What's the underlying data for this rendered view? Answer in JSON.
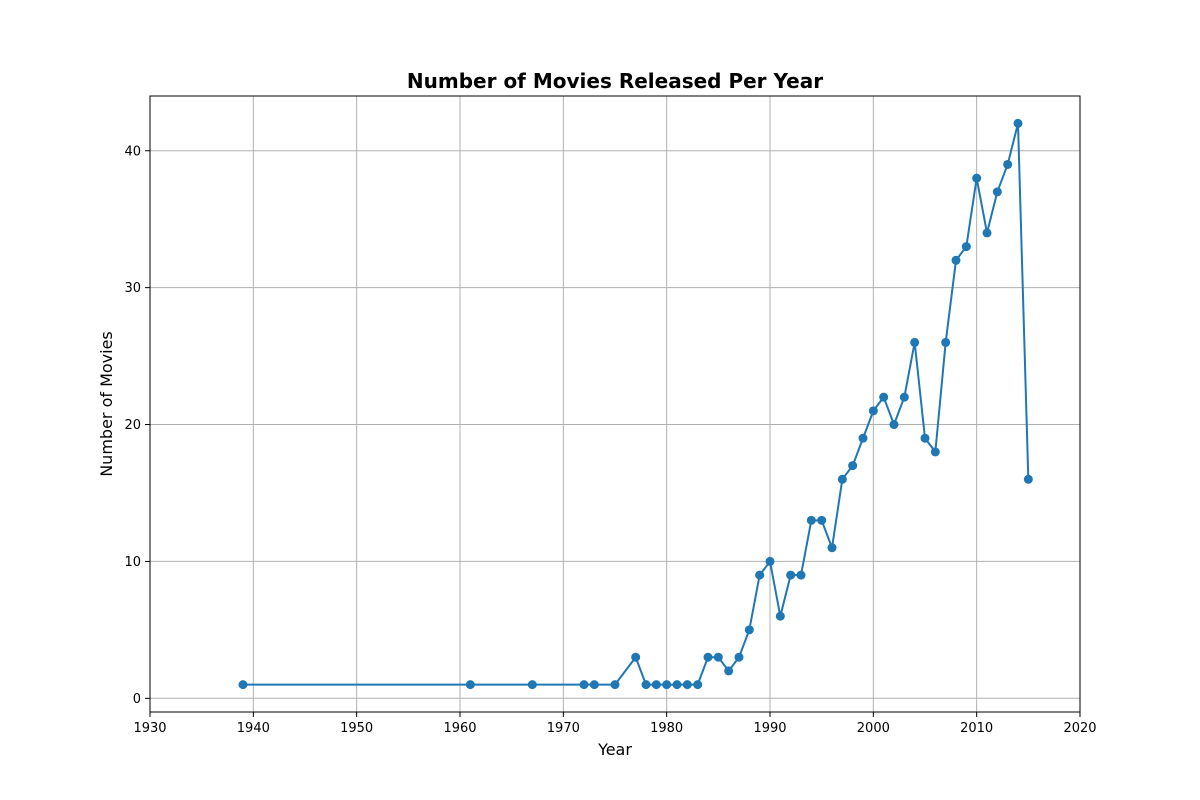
{
  "chart_data": {
    "type": "line",
    "title": "Number of Movies Released Per Year",
    "xlabel": "Year",
    "ylabel": "Number of Movies",
    "xlim": [
      1930,
      2020
    ],
    "ylim": [
      -1,
      44
    ],
    "xticks": [
      1930,
      1940,
      1950,
      1960,
      1970,
      1980,
      1990,
      2000,
      2010,
      2020
    ],
    "yticks": [
      0,
      10,
      20,
      30,
      40
    ],
    "grid": true,
    "marker": "circle",
    "color": "#1f77b4",
    "series": [
      {
        "x": [
          1939,
          1961,
          1967,
          1972,
          1973,
          1975,
          1977,
          1978,
          1979,
          1980,
          1981,
          1982,
          1983,
          1984,
          1985,
          1986,
          1987,
          1988,
          1989,
          1990,
          1991,
          1992,
          1993,
          1994,
          1995,
          1996,
          1997,
          1998,
          1999,
          2000,
          2001,
          2002,
          2003,
          2004,
          2005,
          2006,
          2007,
          2008,
          2009,
          2010,
          2011,
          2012,
          2013,
          2014,
          2015
        ],
        "values": [
          1,
          1,
          1,
          1,
          1,
          1,
          3,
          1,
          1,
          1,
          1,
          1,
          1,
          3,
          3,
          2,
          3,
          5,
          9,
          10,
          6,
          9,
          9,
          13,
          13,
          11,
          16,
          17,
          19,
          21,
          22,
          20,
          22,
          26,
          19,
          18,
          26,
          32,
          33,
          38,
          34,
          37,
          39,
          42,
          16
        ]
      }
    ]
  }
}
